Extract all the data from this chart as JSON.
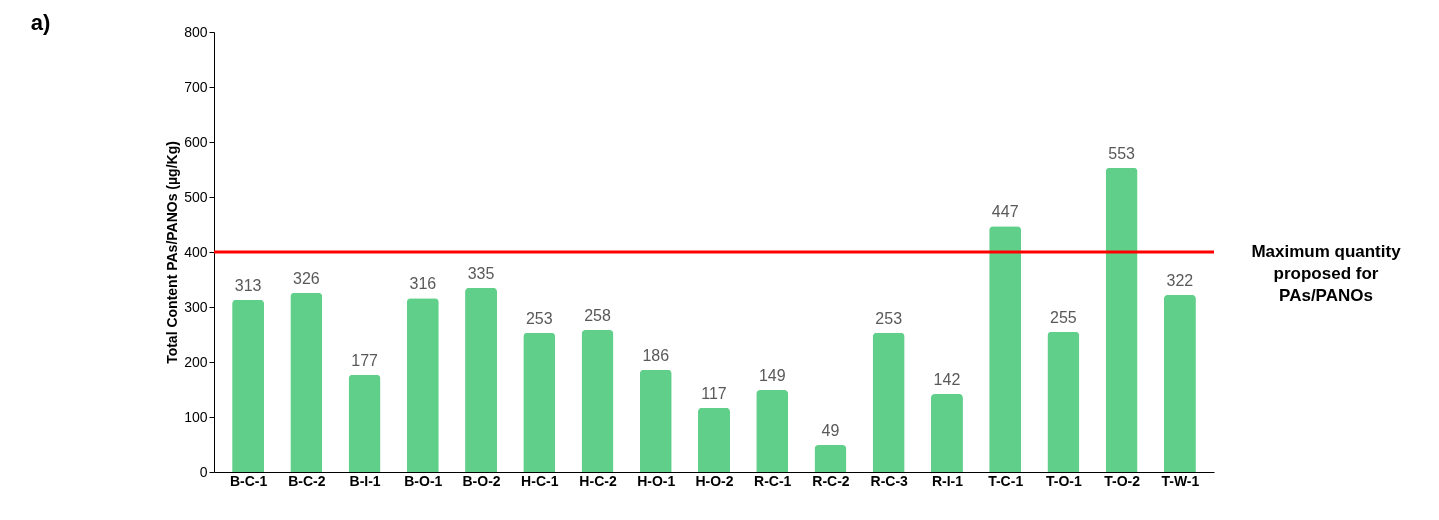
{
  "chart_data": {
    "type": "bar",
    "title": "a)",
    "ylabel": "Total Content PAs/PANOs (µg/Kg)",
    "categories": [
      "B-C-1",
      "B-C-2",
      "B-I-1",
      "B-O-1",
      "B-O-2",
      "H-C-1",
      "H-C-2",
      "H-O-1",
      "H-O-2",
      "R-C-1",
      "R-C-2",
      "R-C-3",
      "R-I-1",
      "T-C-1",
      "T-O-1",
      "T-O-2",
      "T-W-1"
    ],
    "values": [
      313,
      326,
      177,
      316,
      335,
      253,
      258,
      186,
      117,
      149,
      49,
      253,
      142,
      447,
      255,
      553,
      322
    ],
    "color": "#5fcf8a",
    "ylim": [
      0,
      800
    ],
    "yticks": [
      0,
      100,
      200,
      300,
      400,
      500,
      600,
      700,
      800
    ],
    "ref_lines": [
      {
        "axis": "y",
        "value": 400,
        "label": "Maximum quantity proposed for PAs/PANOs",
        "color": "#ff0000",
        "line_style": "solid"
      }
    ],
    "data_labels": true,
    "grid": false
  }
}
